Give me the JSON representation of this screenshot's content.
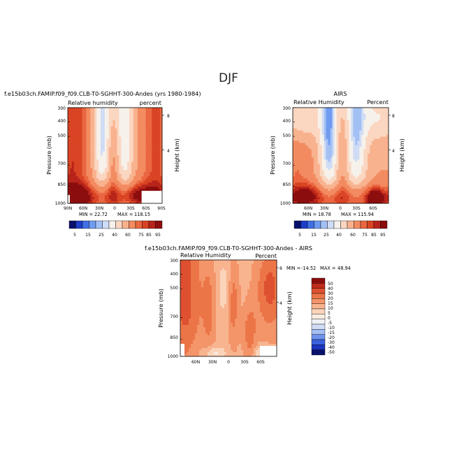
{
  "figure": {
    "title": "DJF"
  },
  "chart_data": [
    {
      "id": "model",
      "type": "heatmap",
      "run_title": "f.e15b03ch.FAMIP.f09_f09.CLB-T0-SGHHT-300-Andes (yrs 1980-1984)",
      "left_label": "Relative humidity",
      "right_label": "percent",
      "ylabel": "Pressure (mb)",
      "ylabel_right": "Height (km)",
      "y_ticks": [
        "300",
        "400",
        "500",
        "700",
        "850",
        "1000"
      ],
      "height_ticks": [
        "8",
        "4"
      ],
      "x_ticks": [
        "90N",
        "60N",
        "30N",
        "0",
        "30S",
        "60S",
        "90S"
      ],
      "min_label": "MIN =",
      "min_value": "22.72",
      "max_label": "MAX =",
      "max_value": "118.15",
      "colorbar_labels": [
        "5",
        "15",
        "25",
        "40",
        "60",
        "75",
        "85",
        "95"
      ]
    },
    {
      "id": "obs",
      "type": "heatmap",
      "run_title": "AIRS",
      "left_label": "Relative Humidity",
      "right_label": "Percent",
      "ylabel": "Pressure (mb)",
      "ylabel_right": "Height (km)",
      "y_ticks": [
        "300",
        "400",
        "500",
        "700",
        "850",
        "1000"
      ],
      "height_ticks": [
        "8",
        "4"
      ],
      "x_ticks": [
        "60N",
        "30N",
        "0",
        "30S",
        "60S"
      ],
      "min_label": "MIN =",
      "min_value": "18.78",
      "max_label": "MAX =",
      "max_value": "115.94",
      "colorbar_labels": [
        "5",
        "15",
        "25",
        "40",
        "60",
        "75",
        "85",
        "95"
      ]
    },
    {
      "id": "diff",
      "type": "heatmap",
      "run_title": "f.e15b03ch.FAMIP.f09_f09.CLB-T0-SGHHT-300-Andes - AIRS",
      "left_label": "Relative Humidity",
      "right_label": "Percent",
      "ylabel": "Pressure (mb)",
      "ylabel_right": "Height (km)",
      "y_ticks": [
        "300",
        "400",
        "500",
        "700",
        "850",
        "1000"
      ],
      "height_ticks": [
        "8",
        "4"
      ],
      "x_ticks": [
        "60N",
        "30N",
        "0",
        "30S",
        "60S"
      ],
      "min_label": "MIN =",
      "min_value": "-14.52",
      "max_label": "MAX =",
      "max_value": "48.94",
      "colorbar_labels": [
        "50",
        "40",
        "30",
        "20",
        "15",
        "10",
        "5",
        "0",
        "-5",
        "-10",
        "-15",
        "-20",
        "-30",
        "-40",
        "-50"
      ]
    }
  ],
  "palette_abs": [
    "#08106b",
    "#1f3ec8",
    "#3f6fe5",
    "#6f9bf0",
    "#a3c0f4",
    "#cfdcf5",
    "#f6f1ea",
    "#fbd6c0",
    "#f8b28e",
    "#f38b61",
    "#ea6740",
    "#d94424",
    "#b9241a",
    "#8c0d0d"
  ],
  "palette_diff": [
    "#08106b",
    "#1b35c0",
    "#3a62de",
    "#6e93ee",
    "#a4bff4",
    "#d0ddf5",
    "#eef1f6",
    "#f8ece2",
    "#fbd3ba",
    "#f8b48f",
    "#f39569",
    "#ec7548",
    "#de5030",
    "#c02c1c",
    "#8c0d0d"
  ]
}
